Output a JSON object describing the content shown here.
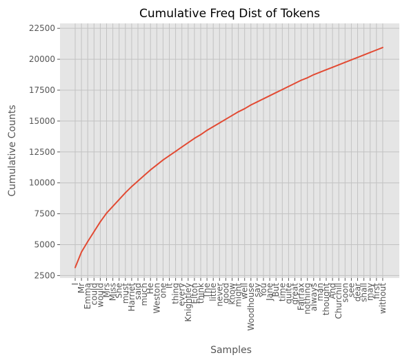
{
  "chart_data": {
    "type": "line",
    "title": "Cumulative Freq Dist of Tokens",
    "xlabel": "Samples",
    "ylabel": "Cumulative Counts",
    "grid": true,
    "ylim": [
      2300,
      22900
    ],
    "yticks": [
      2500,
      5000,
      7500,
      10000,
      12500,
      15000,
      17500,
      20000,
      22500
    ],
    "categories": [
      "I",
      "Mr",
      "Emma",
      "could",
      "would",
      "Mrs",
      "Miss",
      "She",
      "must",
      "Harriet",
      "said",
      "much",
      "He",
      "Weston",
      "one",
      "It",
      "thing",
      "every",
      "Knightley",
      "Elton",
      "think",
      "The",
      "little",
      "never",
      "good",
      "know",
      "might",
      "well",
      "Woodhouse",
      "say",
      "You",
      "Jane",
      "But",
      "time",
      "quite",
      "great",
      "Fairfax",
      "nothing",
      "always",
      "man",
      "thought",
      "And",
      "Churchill",
      "soon",
      "see",
      "dear",
      "shall",
      "may",
      "first",
      "without"
    ],
    "series": [
      {
        "color": "#e24a33",
        "values": [
          3150,
          4400,
          5250,
          6050,
          6850,
          7550,
          8100,
          8650,
          9200,
          9700,
          10150,
          10600,
          11050,
          11450,
          11850,
          12200,
          12550,
          12900,
          13250,
          13600,
          13900,
          14250,
          14550,
          14850,
          15150,
          15450,
          15750,
          16000,
          16300,
          16550,
          16800,
          17050,
          17300,
          17550,
          17800,
          18050,
          18300,
          18500,
          18750,
          18950,
          19150,
          19350,
          19550,
          19750,
          19950,
          20150,
          20350,
          20550,
          20750,
          20950
        ]
      }
    ]
  }
}
